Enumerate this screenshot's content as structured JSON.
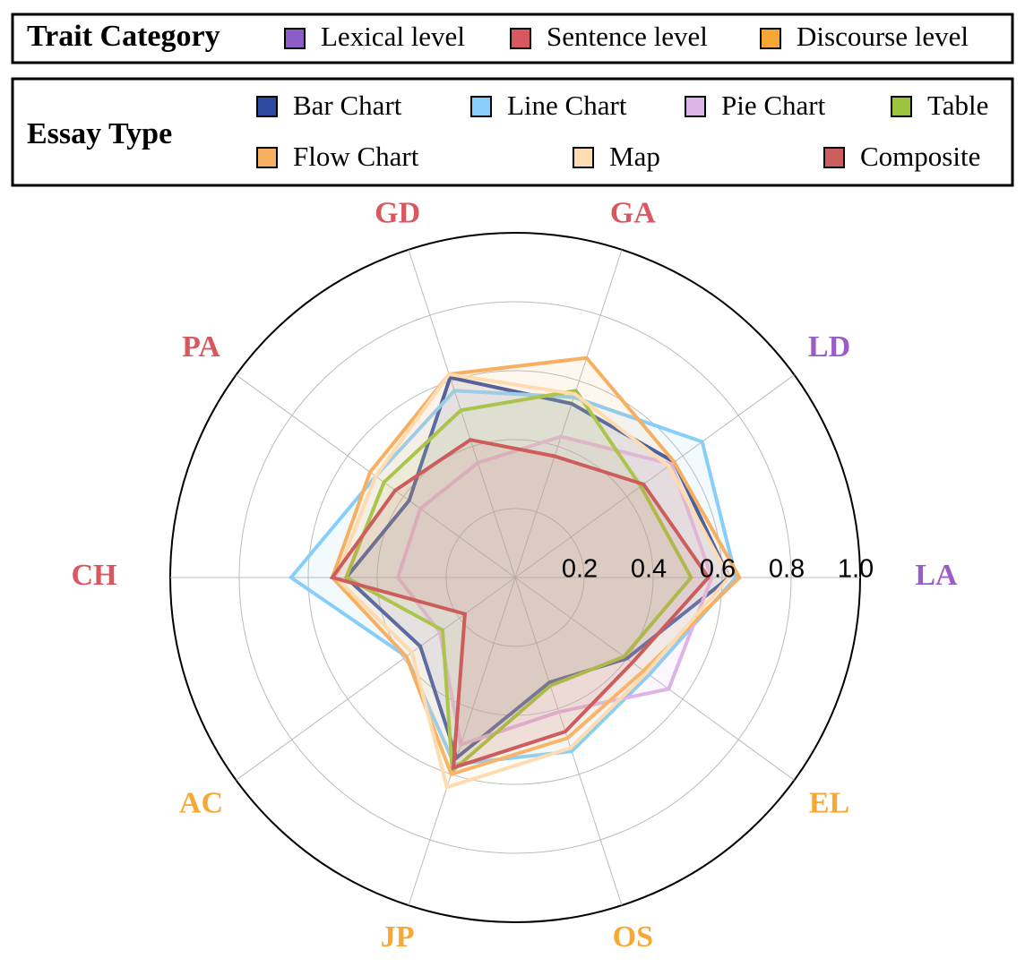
{
  "chart_data": {
    "type": "radar",
    "trait_legend_title": "Trait Category",
    "trait_groups": [
      {
        "name": "Lexical level",
        "color": "#8e5cc6"
      },
      {
        "name": "Sentence level",
        "color": "#d9575f"
      },
      {
        "name": "Discourse level",
        "color": "#f7a833"
      }
    ],
    "legend_title": "Essay Type",
    "categories": [
      "LA",
      "LD",
      "GA",
      "GD",
      "PA",
      "CH",
      "AC",
      "JP",
      "OS",
      "EL"
    ],
    "category_colors": [
      "#9a5cc6",
      "#9a5cc6",
      "#d9575f",
      "#d9575f",
      "#d9575f",
      "#d9575f",
      "#f7a833",
      "#f7a833",
      "#f7a833",
      "#f7a833"
    ],
    "ylim": [
      0,
      1
    ],
    "yticks": [
      0.2,
      0.4,
      0.6,
      0.8,
      {
        "value": 1,
        "label": "1.0"
      }
    ],
    "grid": true,
    "series": [
      {
        "name": "Bar Chart",
        "color": "#2e4a9e",
        "values": [
          0.62,
          0.57,
          0.53,
          0.61,
          0.38,
          0.49,
          0.34,
          0.55,
          0.32,
          0.4
        ]
      },
      {
        "name": "Line Chart",
        "color": "#87cefa",
        "values": [
          0.64,
          0.67,
          0.55,
          0.57,
          0.5,
          0.65,
          0.39,
          0.57,
          0.53,
          0.48
        ]
      },
      {
        "name": "Pie Chart",
        "color": "#dcb4e6",
        "values": [
          0.57,
          0.56,
          0.43,
          0.35,
          0.34,
          0.34,
          0.27,
          0.51,
          0.41,
          0.55
        ]
      },
      {
        "name": "Table",
        "color": "#9ac43c",
        "values": [
          0.51,
          0.45,
          0.57,
          0.51,
          0.47,
          0.49,
          0.26,
          0.59,
          0.33,
          0.39
        ]
      },
      {
        "name": "Flow Chart",
        "color": "#f7b062",
        "values": [
          0.65,
          0.57,
          0.67,
          0.62,
          0.52,
          0.53,
          0.39,
          0.6,
          0.49,
          0.46
        ]
      },
      {
        "name": "Map",
        "color": "#ffdcb0",
        "values": [
          0.62,
          0.55,
          0.56,
          0.62,
          0.5,
          0.52,
          0.37,
          0.64,
          0.52,
          0.47
        ]
      },
      {
        "name": "Composite",
        "color": "#cd5c5c",
        "values": [
          0.56,
          0.46,
          0.37,
          0.42,
          0.43,
          0.53,
          0.18,
          0.58,
          0.47,
          0.42
        ]
      }
    ]
  }
}
